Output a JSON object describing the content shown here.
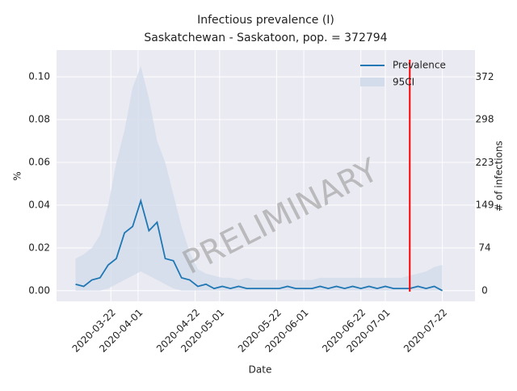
{
  "chart_data": {
    "type": "line",
    "title": "Infectious prevalence (I)",
    "subtitle": "Saskatchewan - Saskatoon, pop. = 372794",
    "x_label": "Date",
    "y_label": "%",
    "y2_label": "# of infections",
    "watermark": "PRELIMINARY",
    "x": [
      "2020-03-09",
      "2020-03-12",
      "2020-03-15",
      "2020-03-18",
      "2020-03-21",
      "2020-03-24",
      "2020-03-27",
      "2020-03-30",
      "2020-04-02",
      "2020-04-05",
      "2020-04-08",
      "2020-04-11",
      "2020-04-14",
      "2020-04-17",
      "2020-04-20",
      "2020-04-23",
      "2020-04-26",
      "2020-04-29",
      "2020-05-02",
      "2020-05-05",
      "2020-05-08",
      "2020-05-11",
      "2020-05-14",
      "2020-05-17",
      "2020-05-20",
      "2020-05-23",
      "2020-05-26",
      "2020-05-29",
      "2020-06-01",
      "2020-06-04",
      "2020-06-07",
      "2020-06-10",
      "2020-06-13",
      "2020-06-16",
      "2020-06-19",
      "2020-06-22",
      "2020-06-25",
      "2020-06-28",
      "2020-07-01",
      "2020-07-04",
      "2020-07-07",
      "2020-07-10",
      "2020-07-13",
      "2020-07-16",
      "2020-07-19",
      "2020-07-22"
    ],
    "series": [
      {
        "name": "Prevalence",
        "color": "#1f77b4",
        "values": [
          0.003,
          0.002,
          0.005,
          0.006,
          0.012,
          0.015,
          0.027,
          0.03,
          0.042,
          0.028,
          0.032,
          0.015,
          0.014,
          0.006,
          0.005,
          0.002,
          0.003,
          0.001,
          0.002,
          0.001,
          0.002,
          0.001,
          0.001,
          0.001,
          0.001,
          0.001,
          0.002,
          0.001,
          0.001,
          0.001,
          0.002,
          0.001,
          0.002,
          0.001,
          0.002,
          0.001,
          0.002,
          0.001,
          0.002,
          0.001,
          0.001,
          0.001,
          0.002,
          0.001,
          0.002,
          0.0
        ]
      },
      {
        "name": "95CI",
        "color": "#d3dcea",
        "upper": [
          0.015,
          0.017,
          0.02,
          0.026,
          0.04,
          0.06,
          0.075,
          0.095,
          0.105,
          0.09,
          0.07,
          0.06,
          0.045,
          0.03,
          0.018,
          0.01,
          0.008,
          0.007,
          0.006,
          0.006,
          0.005,
          0.006,
          0.005,
          0.005,
          0.005,
          0.005,
          0.005,
          0.005,
          0.005,
          0.005,
          0.006,
          0.006,
          0.006,
          0.006,
          0.006,
          0.006,
          0.006,
          0.006,
          0.006,
          0.006,
          0.006,
          0.007,
          0.008,
          0.009,
          0.011,
          0.012
        ],
        "lower": [
          0,
          0,
          0,
          0,
          0.001,
          0.003,
          0.005,
          0.007,
          0.009,
          0.007,
          0.005,
          0.003,
          0.001,
          0,
          0,
          0,
          0,
          0,
          0,
          0,
          0,
          0,
          0,
          0,
          0,
          0,
          0,
          0,
          0,
          0,
          0,
          0,
          0,
          0,
          0,
          0,
          0,
          0,
          0,
          0,
          0,
          0,
          0,
          0,
          0,
          0
        ]
      }
    ],
    "vline": {
      "x": "2020-07-10",
      "color": "#ff0000"
    },
    "xlim": [
      "2020-03-02",
      "2020-08-03"
    ],
    "xticks": [
      "2020-03-22",
      "2020-04-01",
      "2020-04-22",
      "2020-05-01",
      "2020-05-22",
      "2020-06-01",
      "2020-06-22",
      "2020-07-01",
      "2020-07-22"
    ],
    "ylim": [
      -0.005,
      0.1125
    ],
    "yticks": [
      {
        "value": 0,
        "label": "0.00"
      },
      {
        "value": 0.02,
        "label": "0.02"
      },
      {
        "value": 0.04,
        "label": "0.04"
      },
      {
        "value": 0.06,
        "label": "0.06"
      },
      {
        "value": 0.08,
        "label": "0.08"
      },
      {
        "value": 0.1,
        "label": "0.10"
      }
    ],
    "y2lim": [
      -18.6,
      419.4
    ],
    "y2ticks": [
      0,
      74,
      149,
      223,
      298,
      372
    ],
    "grid": true,
    "legend": "upper right"
  }
}
